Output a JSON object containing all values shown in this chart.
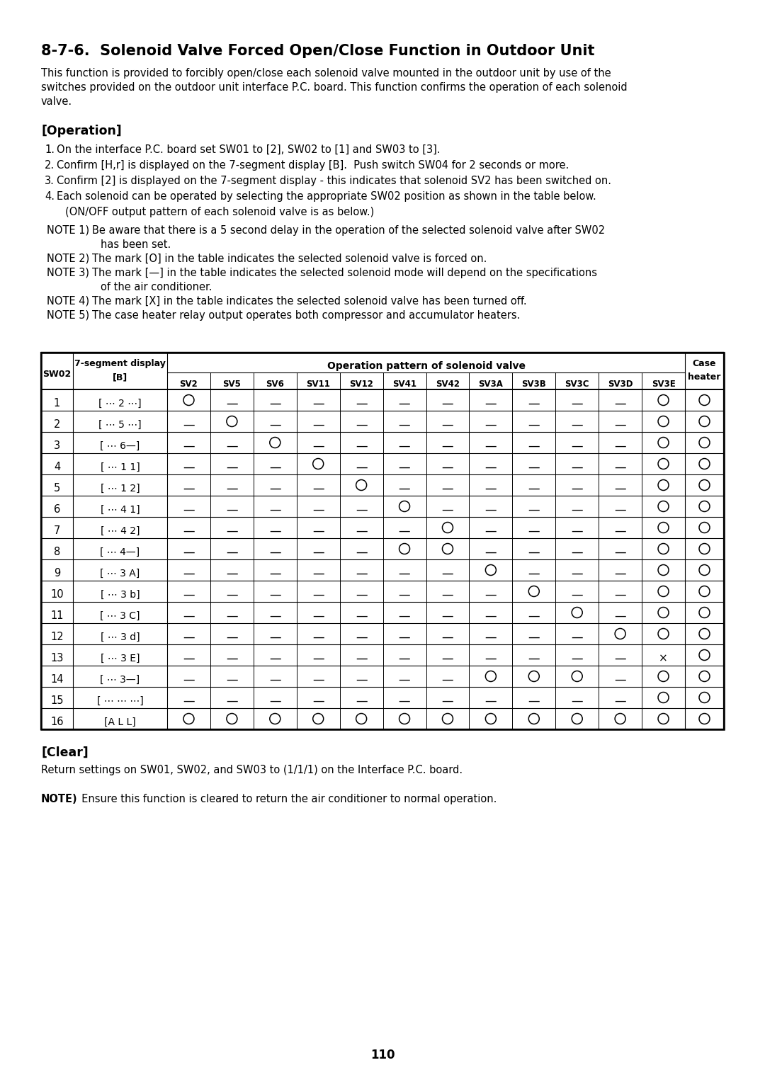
{
  "title": "8-7-6.  Solenoid Valve Forced Open/Close Function in Outdoor Unit",
  "intro_lines": [
    "This function is provided to forcibly open/close each solenoid valve mounted in the outdoor unit by use of the",
    "switches provided on the outdoor unit interface P.C. board. This function confirms the operation of each solenoid",
    "valve."
  ],
  "section_operation": "[Operation]",
  "op_items": [
    {
      "num": "1.",
      "text": "On the interface P.C. board set SW01 to [2], SW02 to [1] and SW03 to [3].",
      "sub": null
    },
    {
      "num": "2.",
      "text": "Confirm [H,r] is displayed on the 7-segment display [B].  Push switch SW04 for 2 seconds or more.",
      "sub": null
    },
    {
      "num": "3.",
      "text": "Confirm [2] is displayed on the 7-segment display - this indicates that solenoid SV2 has been switched on.",
      "sub": null
    },
    {
      "num": "4.",
      "text": "Each solenoid can be operated by selecting the appropriate SW02 position as shown in the table below.",
      "sub": "(ON/OFF output pattern of each solenoid valve is as below.)"
    }
  ],
  "notes": [
    {
      "label": "NOTE 1)",
      "line1": "Be aware that there is a 5 second delay in the operation of the selected solenoid valve after SW02",
      "line2": "has been set."
    },
    {
      "label": "NOTE 2)",
      "line1": "The mark [O] in the table indicates the selected solenoid valve is forced on.",
      "line2": null
    },
    {
      "label": "NOTE 3)",
      "line1": "The mark [—] in the table indicates the selected solenoid mode will depend on the specifications",
      "line2": "of the air conditioner."
    },
    {
      "label": "NOTE 4)",
      "line1": "The mark [X] in the table indicates the selected solenoid valve has been turned off.",
      "line2": null
    },
    {
      "label": "NOTE 5)",
      "line1": "The case heater relay output operates both compressor and accumulator heaters.",
      "line2": null
    }
  ],
  "col_headers_sv": [
    "SV2",
    "SV5",
    "SV6",
    "SV11",
    "SV12",
    "SV41",
    "SV42",
    "SV3A",
    "SV3B",
    "SV3C",
    "SV3D",
    "SV3E"
  ],
  "rows": [
    {
      "sw02": "1",
      "display": "[ ⋯ 2 ⋯]",
      "vals": [
        "O",
        "—",
        "—",
        "—",
        "—",
        "—",
        "—",
        "—",
        "—",
        "—",
        "—",
        "O"
      ],
      "heater": "O"
    },
    {
      "sw02": "2",
      "display": "[ ⋯ 5 ⋯]",
      "vals": [
        "—",
        "O",
        "—",
        "—",
        "—",
        "—",
        "—",
        "—",
        "—",
        "—",
        "—",
        "O"
      ],
      "heater": "O"
    },
    {
      "sw02": "3",
      "display": "[ ⋯ 6—]",
      "vals": [
        "—",
        "—",
        "O",
        "—",
        "—",
        "—",
        "—",
        "—",
        "—",
        "—",
        "—",
        "O"
      ],
      "heater": "O"
    },
    {
      "sw02": "4",
      "display": "[ ⋯ 1 1]",
      "vals": [
        "—",
        "—",
        "—",
        "O",
        "—",
        "—",
        "—",
        "—",
        "—",
        "—",
        "—",
        "O"
      ],
      "heater": "O"
    },
    {
      "sw02": "5",
      "display": "[ ⋯ 1 2]",
      "vals": [
        "—",
        "—",
        "—",
        "—",
        "O",
        "—",
        "—",
        "—",
        "—",
        "—",
        "—",
        "O"
      ],
      "heater": "O"
    },
    {
      "sw02": "6",
      "display": "[ ⋯ 4 1]",
      "vals": [
        "—",
        "—",
        "—",
        "—",
        "—",
        "O",
        "—",
        "—",
        "—",
        "—",
        "—",
        "O"
      ],
      "heater": "O"
    },
    {
      "sw02": "7",
      "display": "[ ⋯ 4 2]",
      "vals": [
        "—",
        "—",
        "—",
        "—",
        "—",
        "—",
        "O",
        "—",
        "—",
        "—",
        "—",
        "O"
      ],
      "heater": "O"
    },
    {
      "sw02": "8",
      "display": "[ ⋯ 4—]",
      "vals": [
        "—",
        "—",
        "—",
        "—",
        "—",
        "O",
        "O",
        "—",
        "—",
        "—",
        "—",
        "O"
      ],
      "heater": "O"
    },
    {
      "sw02": "9",
      "display": "[ ⋯ 3 A]",
      "vals": [
        "—",
        "—",
        "—",
        "—",
        "—",
        "—",
        "—",
        "O",
        "—",
        "—",
        "—",
        "O"
      ],
      "heater": "O"
    },
    {
      "sw02": "10",
      "display": "[ ⋯ 3 b]",
      "vals": [
        "—",
        "—",
        "—",
        "—",
        "—",
        "—",
        "—",
        "—",
        "O",
        "—",
        "—",
        "O"
      ],
      "heater": "O"
    },
    {
      "sw02": "11",
      "display": "[ ⋯ 3 C]",
      "vals": [
        "—",
        "—",
        "—",
        "—",
        "—",
        "—",
        "—",
        "—",
        "—",
        "O",
        "—",
        "O"
      ],
      "heater": "O"
    },
    {
      "sw02": "12",
      "display": "[ ⋯ 3 d]",
      "vals": [
        "—",
        "—",
        "—",
        "—",
        "—",
        "—",
        "—",
        "—",
        "—",
        "—",
        "O",
        "O"
      ],
      "heater": "O"
    },
    {
      "sw02": "13",
      "display": "[ ⋯ 3 E]",
      "vals": [
        "—",
        "—",
        "—",
        "—",
        "—",
        "—",
        "—",
        "—",
        "—",
        "—",
        "—",
        "×"
      ],
      "heater": "O"
    },
    {
      "sw02": "14",
      "display": "[ ⋯ 3—]",
      "vals": [
        "—",
        "—",
        "—",
        "—",
        "—",
        "—",
        "—",
        "O",
        "O",
        "O",
        "—",
        "O"
      ],
      "heater": "O"
    },
    {
      "sw02": "15",
      "display": "[ ⋯ ⋯ ⋯]",
      "vals": [
        "—",
        "—",
        "—",
        "—",
        "—",
        "—",
        "—",
        "—",
        "—",
        "—",
        "—",
        "O"
      ],
      "heater": "O"
    },
    {
      "sw02": "16",
      "display": "[A L L]",
      "vals": [
        "O",
        "O",
        "O",
        "O",
        "O",
        "O",
        "O",
        "O",
        "O",
        "O",
        "O",
        "O"
      ],
      "heater": "O"
    }
  ],
  "section_clear": "[Clear]",
  "clear_text": "Return settings on SW01, SW02, and SW03 to (1/1/1) on the Interface P.C. board.",
  "note_final_bold": "NOTE)",
  "note_final_text": "  Ensure this function is cleared to return the air conditioner to normal operation.",
  "page_number": "110"
}
